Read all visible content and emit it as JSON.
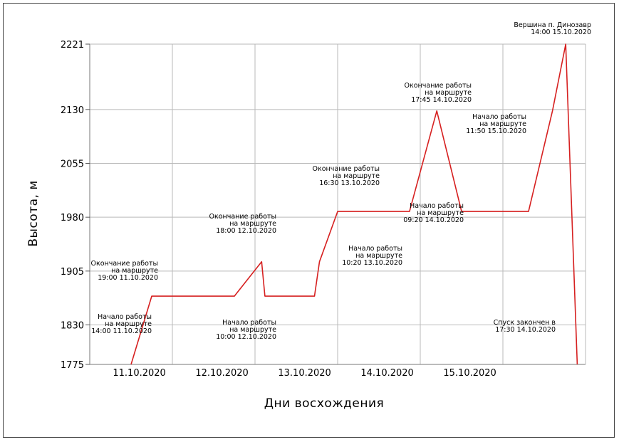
{
  "chart_data": {
    "type": "line",
    "title": "",
    "xlabel": "Дни восхождения",
    "ylabel": "Высота, м",
    "ylim": [
      1775,
      2221
    ],
    "yticks": [
      1775,
      1830,
      1905,
      1980,
      2055,
      2130,
      2221
    ],
    "categories": [
      "11.10.2020",
      "12.10.2020",
      "13.10.2020",
      "14.10.2020",
      "15.10.2020"
    ],
    "grid": true,
    "legend": "none",
    "line_color": "#d62020",
    "series": [
      {
        "x": [
          0.5,
          0.75,
          1.55,
          1.75,
          2.08,
          2.12,
          2.72,
          2.78,
          3.0,
          3.87,
          4.2,
          4.5,
          4.7,
          5.31,
          5.6,
          5.76,
          5.9
        ],
        "y": [
          1775,
          1870,
          1870,
          1870,
          1918,
          1870,
          1870,
          1918,
          1988,
          1988,
          2128,
          1988,
          1988,
          1988,
          2128,
          2221,
          1775
        ]
      }
    ],
    "annotations": [
      {
        "lines": [
          "Начало работы",
          "на маршруте",
          "14:00  11.10.2020"
        ]
      },
      {
        "lines": [
          "Окончание работы",
          "на маршруте",
          "19:00  11.10.2020"
        ]
      },
      {
        "lines": [
          "Окончание работы",
          "на маршруте",
          "18:00  12.10.2020"
        ]
      },
      {
        "lines": [
          "Начало работы",
          "на маршруте",
          "10:00  12.10.2020"
        ]
      },
      {
        "lines": [
          "Окончание работы",
          "на маршруте",
          "16:30  13.10.2020"
        ]
      },
      {
        "lines": [
          "Начало работы",
          "на маршруте",
          "10:20  13.10.2020"
        ]
      },
      {
        "lines": [
          "Окончание работы",
          "на маршруте",
          "17:45  14.10.2020"
        ]
      },
      {
        "lines": [
          "Начало работы",
          "на маршруте",
          "09:20  14.10.2020"
        ]
      },
      {
        "lines": [
          "Начало работы",
          "на маршруте",
          "11:50  15.10.2020"
        ]
      },
      {
        "lines": [
          "Вершина  п.  Динозавр",
          "14:00  15.10.2020"
        ]
      },
      {
        "lines": [
          "Спуск закончен в",
          "17:30  14.10.2020"
        ]
      }
    ]
  }
}
